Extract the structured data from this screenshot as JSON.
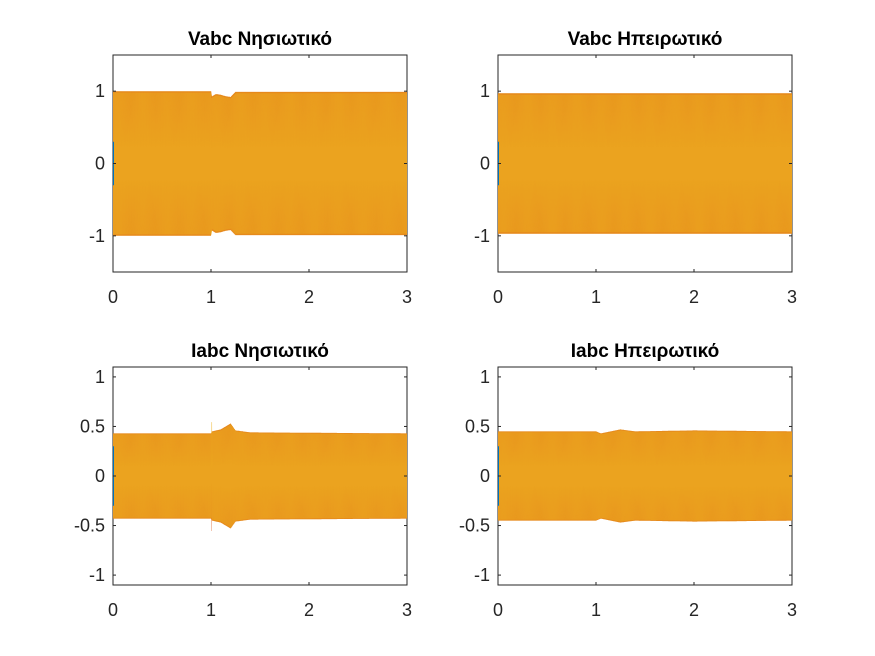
{
  "colors": {
    "phase_a": "#0072BD",
    "phase_b": "#D95319",
    "phase_c": "#EDB120",
    "fill_dominant": "#EDA51F",
    "axes": "#262626",
    "background": "#ffffff"
  },
  "chart_data": [
    {
      "type": "line",
      "title": "Vabc Νησιωτικό",
      "xlabel": "",
      "ylabel": "",
      "xlim": [
        0,
        3
      ],
      "ylim": [
        -1.5,
        1.5
      ],
      "xticks": [
        0,
        1,
        2,
        3
      ],
      "yticks": [
        -1,
        0,
        1
      ],
      "xticklabels": [
        "0",
        "1",
        "2",
        "3"
      ],
      "yticklabels": [
        "-1",
        "0",
        "1"
      ],
      "grid": false,
      "signal": "three-phase voltage",
      "envelope": [
        [
          0,
          1.0
        ],
        [
          1.0,
          1.0
        ],
        [
          1.0,
          0.92
        ],
        [
          1.05,
          0.96
        ],
        [
          1.1,
          0.95
        ],
        [
          1.15,
          0.93
        ],
        [
          1.2,
          0.92
        ],
        [
          1.25,
          0.99
        ],
        [
          1.4,
          0.99
        ],
        [
          3,
          0.99
        ]
      ]
    },
    {
      "type": "line",
      "title": "Vabc Ηπειρωτικό",
      "xlabel": "",
      "ylabel": "",
      "xlim": [
        0,
        3
      ],
      "ylim": [
        -1.5,
        1.5
      ],
      "xticks": [
        0,
        1,
        2,
        3
      ],
      "yticks": [
        -1,
        0,
        1
      ],
      "xticklabels": [
        "0",
        "1",
        "2",
        "3"
      ],
      "yticklabels": [
        "-1",
        "0",
        "1"
      ],
      "grid": false,
      "signal": "three-phase voltage",
      "envelope": [
        [
          0,
          0.97
        ],
        [
          3,
          0.97
        ]
      ]
    },
    {
      "type": "line",
      "title": "Iabc Νησιωτικό",
      "xlabel": "",
      "ylabel": "",
      "xlim": [
        0,
        3
      ],
      "ylim": [
        -1.1,
        1.1
      ],
      "xticks": [
        0,
        1,
        2,
        3
      ],
      "yticks": [
        -1,
        -0.5,
        0,
        0.5,
        1
      ],
      "xticklabels": [
        "0",
        "1",
        "2",
        "3"
      ],
      "yticklabels": [
        "-1",
        "-0.5",
        "0",
        "0.5",
        "1"
      ],
      "grid": false,
      "signal": "three-phase current",
      "envelope": [
        [
          0,
          0.43
        ],
        [
          1.0,
          0.43
        ],
        [
          1.0,
          0.66
        ],
        [
          1.01,
          0.45
        ],
        [
          1.1,
          0.47
        ],
        [
          1.2,
          0.53
        ],
        [
          1.25,
          0.46
        ],
        [
          1.4,
          0.44
        ],
        [
          3,
          0.43
        ]
      ]
    },
    {
      "type": "line",
      "title": "Iabc Ηπειρωτικό",
      "xlabel": "",
      "ylabel": "",
      "xlim": [
        0,
        3
      ],
      "ylim": [
        -1.1,
        1.1
      ],
      "xticks": [
        0,
        1,
        2,
        3
      ],
      "yticks": [
        -1,
        -0.5,
        0,
        0.5,
        1
      ],
      "xticklabels": [
        "0",
        "1",
        "2",
        "3"
      ],
      "yticklabels": [
        "-1",
        "-0.5",
        "0",
        "0.5",
        "1"
      ],
      "grid": false,
      "signal": "three-phase current",
      "envelope": [
        [
          0,
          0.45
        ],
        [
          1.0,
          0.45
        ],
        [
          1.05,
          0.43
        ],
        [
          1.1,
          0.44
        ],
        [
          1.25,
          0.47
        ],
        [
          1.4,
          0.45
        ],
        [
          2.0,
          0.46
        ],
        [
          3,
          0.45
        ]
      ]
    }
  ]
}
